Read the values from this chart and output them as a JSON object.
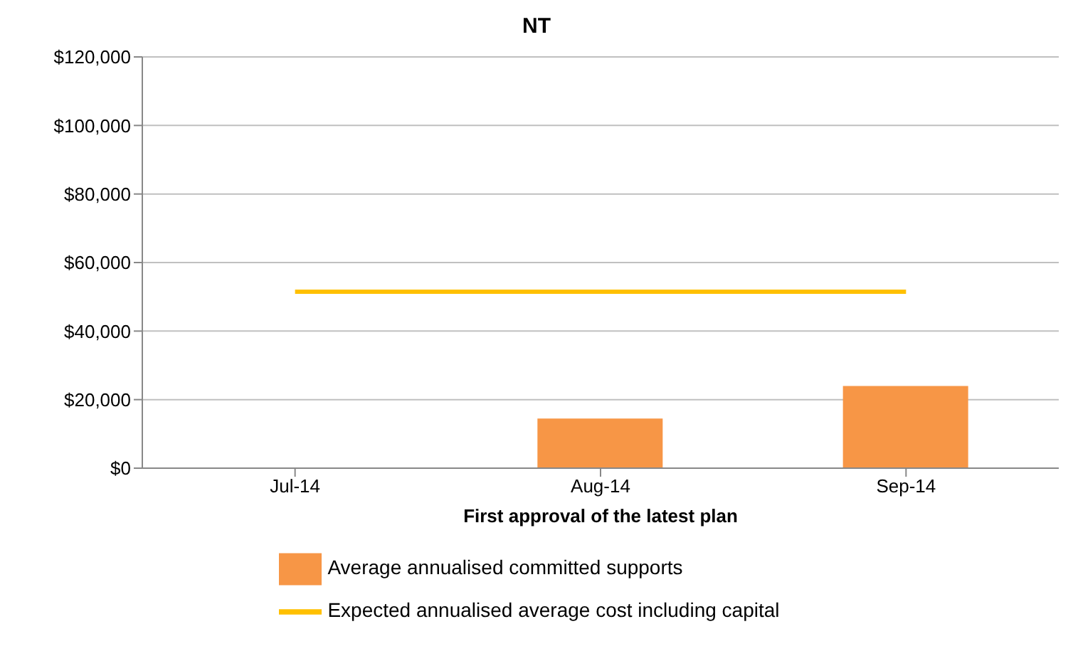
{
  "chart_data": {
    "type": "bar",
    "title": "NT",
    "xlabel": "First approval of the latest plan",
    "categories": [
      "Jul-14",
      "Aug-14",
      "Sep-14"
    ],
    "series": [
      {
        "name": "Average annualised committed supports",
        "color": "#f79646",
        "values": [
          null,
          14500,
          24000
        ]
      },
      {
        "name": "Expected annualised average cost including capital",
        "type": "line",
        "color": "#ffc000",
        "values": [
          51500,
          51500,
          51500
        ]
      }
    ],
    "ylim": [
      0,
      120000
    ],
    "yticks": [
      {
        "value": 0,
        "label": "$0"
      },
      {
        "value": 20000,
        "label": "$20,000"
      },
      {
        "value": 40000,
        "label": "$40,000"
      },
      {
        "value": 60000,
        "label": "$60,000"
      },
      {
        "value": 80000,
        "label": "$80,000"
      },
      {
        "value": 100000,
        "label": "$100,000"
      },
      {
        "value": 120000,
        "label": "$120,000"
      }
    ],
    "grid": "y",
    "legend": "bottom",
    "marker": "none"
  }
}
